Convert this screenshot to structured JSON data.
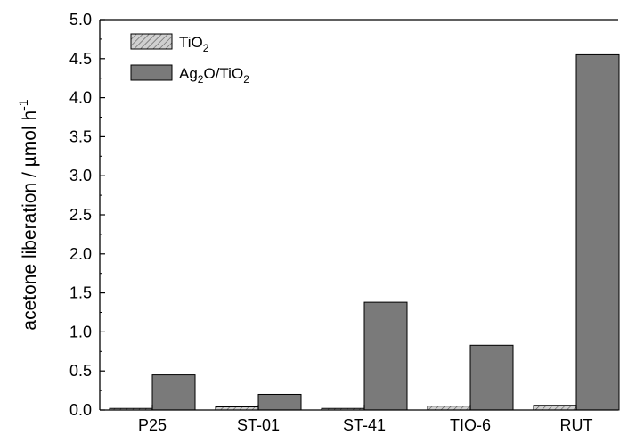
{
  "chart_data": {
    "type": "bar",
    "categories": [
      "P25",
      "ST-01",
      "ST-41",
      "TIO-6",
      "RUT"
    ],
    "series": [
      {
        "name": "TiO2",
        "values": [
          0.02,
          0.04,
          0.02,
          0.05,
          0.06
        ],
        "color": "#b8b8b8",
        "pattern": "hatched"
      },
      {
        "name": "Ag2O/TiO2",
        "values": [
          0.45,
          0.2,
          1.38,
          0.83,
          4.55
        ],
        "color": "#7a7a7a"
      }
    ],
    "ylabel": "acetone liberation / µmol h-1",
    "ylim": [
      0,
      5
    ],
    "yticks": [
      "0.0",
      "0.5",
      "1.0",
      "1.5",
      "2.0",
      "2.5",
      "3.0",
      "3.5",
      "4.0",
      "4.5",
      "5.0"
    ],
    "legend_position": "top-left",
    "legend": [
      {
        "text": "TiO",
        "sub": "2"
      },
      {
        "parts": [
          {
            "t": "Ag"
          },
          {
            "t": "2",
            "sub": true
          },
          {
            "t": "O/TiO"
          },
          {
            "t": "2",
            "sub": true
          }
        ]
      }
    ],
    "ylabel_parts": {
      "main": "acetone liberation / µmol h",
      "sup": "-1"
    },
    "grid": false
  }
}
